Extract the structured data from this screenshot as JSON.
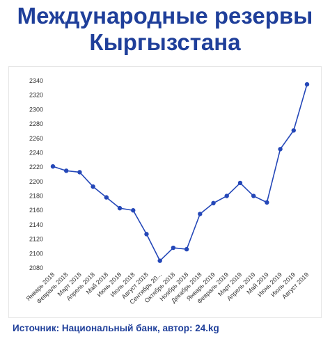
{
  "title": {
    "line1": "Международные резервы",
    "line2": "Кыргызстана"
  },
  "source_note": "Источник: Национальный банк, автор: 24.kg",
  "colors": {
    "accent": "#1f3f9a",
    "line": "#2447b8",
    "marker": "#2447b8"
  },
  "chart_data": {
    "type": "line",
    "title": "",
    "xlabel": "",
    "ylabel": "",
    "ylim": [
      2080,
      2340
    ],
    "yticks": [
      2080,
      2100,
      2120,
      2140,
      2160,
      2180,
      2200,
      2220,
      2240,
      2260,
      2280,
      2300,
      2320,
      2340
    ],
    "grid": false,
    "categories": [
      "Январь 2018",
      "Февраль 2018",
      "Март 2018",
      "Апрель 2018",
      "Май 2018",
      "Июнь 2018",
      "Июль 2018",
      "Август 2018",
      "Сентябрь 20...",
      "Октябрь 2018",
      "Ноябрь 2018",
      "Декабрь 2018",
      "Январь 2019",
      "Февраль 2019",
      "Март 2019",
      "Апрель 2019",
      "Май 2019",
      "Июнь 2019",
      "Июль 2019",
      "Август 2019"
    ],
    "values": [
      2221,
      2215,
      2213,
      2193,
      2178,
      2163,
      2160,
      2127,
      2090,
      2108,
      2106,
      2155,
      2170,
      2180,
      2198,
      2180,
      2171,
      2245,
      2271,
      2335
    ]
  }
}
